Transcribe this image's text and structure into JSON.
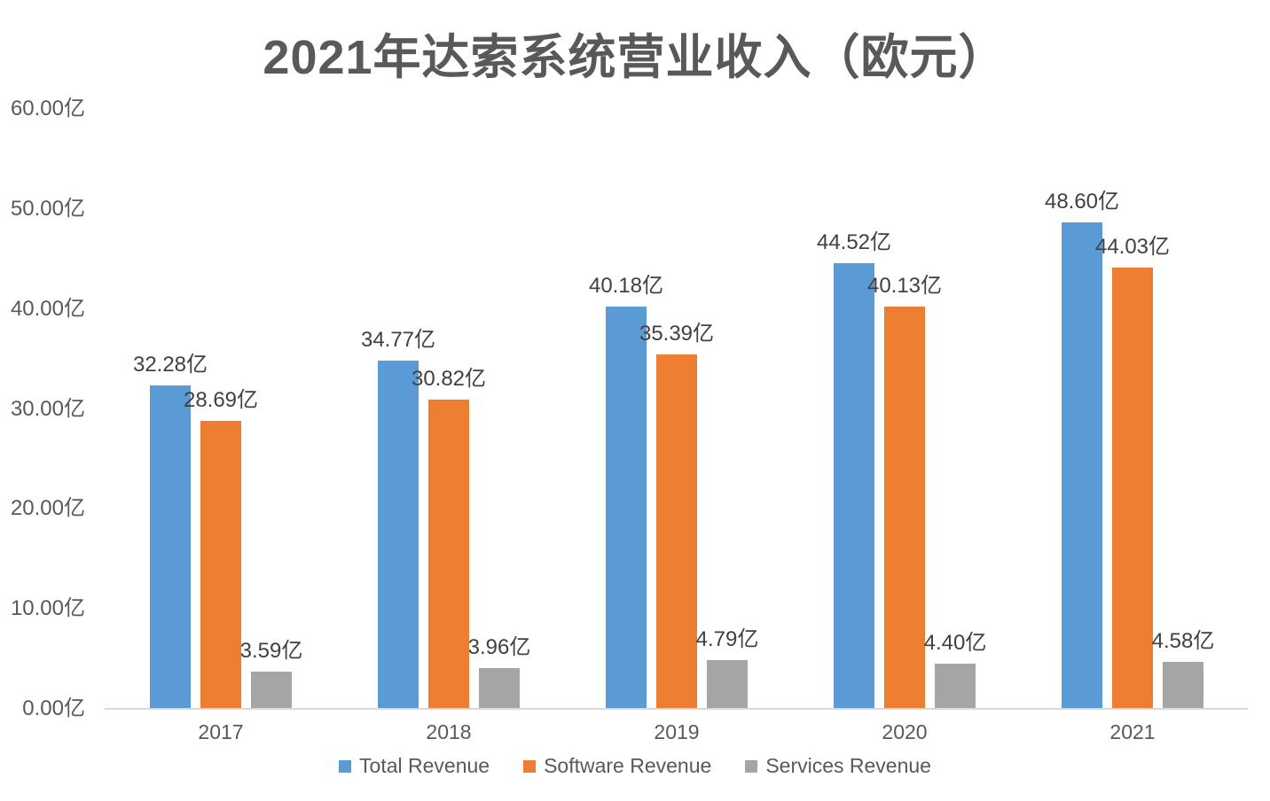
{
  "title": "2021年达索系统营业收入（欧元）",
  "chart_data": {
    "type": "bar",
    "title": "2021年达索系统营业收入（欧元）",
    "categories": [
      "2017",
      "2018",
      "2019",
      "2020",
      "2021"
    ],
    "series": [
      {
        "name": "Total Revenue",
        "color": "#5B9BD5",
        "values": [
          32.28,
          34.77,
          40.18,
          44.52,
          48.6
        ],
        "labels": [
          "32.28亿",
          "34.77亿",
          "40.18亿",
          "44.52亿",
          "48.60亿"
        ]
      },
      {
        "name": "Software Revenue",
        "color": "#ED7D31",
        "values": [
          28.69,
          30.82,
          35.39,
          40.13,
          44.03
        ],
        "labels": [
          "28.69亿",
          "30.82亿",
          "35.39亿",
          "40.13亿",
          "44.03亿"
        ]
      },
      {
        "name": "Services Revenue",
        "color": "#A5A5A5",
        "values": [
          3.59,
          3.96,
          4.79,
          4.4,
          4.58
        ],
        "labels": [
          "3.59亿",
          "3.96亿",
          "4.79亿",
          "4.40亿",
          "4.58亿"
        ]
      }
    ],
    "xlabel": "",
    "ylabel": "",
    "ylim": [
      0,
      60
    ],
    "y_tick_step": 10,
    "y_ticks": [
      "0.00亿",
      "10.00亿",
      "20.00亿",
      "30.00亿",
      "40.00亿",
      "50.00亿",
      "60.00亿"
    ],
    "grid": false,
    "legend_position": "bottom"
  },
  "colors": {
    "background": "#FFFFFF",
    "axis_line": "#D9D9D9",
    "title_text": "#595959",
    "tick_text": "#595959",
    "data_label_text": "#404040"
  }
}
